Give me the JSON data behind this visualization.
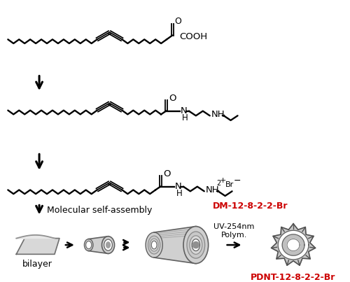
{
  "bg_color": "#ffffff",
  "red_color": "#cc0000",
  "gray_light": "#e0e0e0",
  "gray_mid": "#c0c0c0",
  "gray_dark": "#808080",
  "gray_edge": "#505050",
  "label_bilayer": "bilayer",
  "label_assembly": "Molecular self-assembly",
  "label_uv": "UV-254nm\nPolym.",
  "label_dm": "DM-12-8-2-2-Br",
  "label_pdnt": "PDNT-12-8-2-2-Br"
}
